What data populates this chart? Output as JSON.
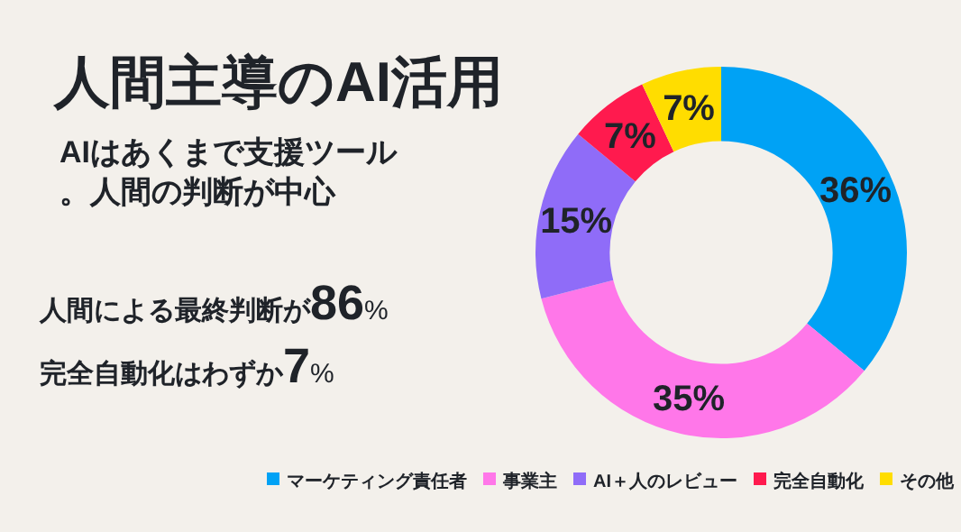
{
  "chart_data": {
    "type": "donut",
    "title": "人間主導のAI活用",
    "subtitle": "AIはあくまで支援ツール。人間の判断が中心",
    "annotations": [
      "人間による最終判断が86%",
      "完全自動化はわずか7%"
    ],
    "categories": [
      "マーケティング責任者",
      "事業主",
      "AI＋人のレビュー",
      "完全自動化",
      "その他"
    ],
    "values": [
      36,
      35,
      15,
      7,
      7
    ],
    "colors": [
      "#00a2f5",
      "#ff77e9",
      "#8f6cf8",
      "#ff1a4e",
      "#ffdd00"
    ],
    "value_labels": [
      "36%",
      "35%",
      "15%",
      "7%",
      "7%"
    ],
    "legend": "bottom"
  }
}
